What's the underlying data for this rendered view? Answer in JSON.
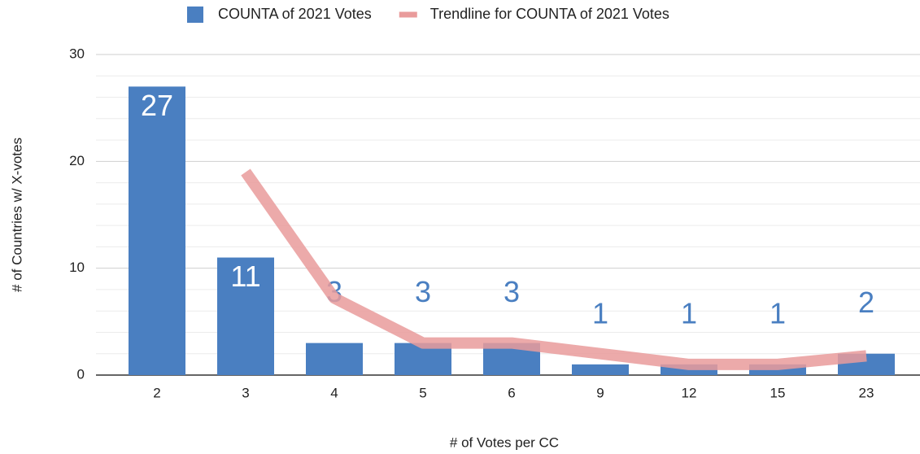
{
  "chart_data": {
    "type": "bar",
    "x_label": "# of Votes per CC",
    "y_label": "# of Countries w/ X-votes",
    "categories": [
      "2",
      "3",
      "4",
      "5",
      "6",
      "9",
      "12",
      "15",
      "23"
    ],
    "series": [
      {
        "name": "COUNTA of 2021 Votes",
        "color": "#4a7fc1",
        "values": [
          27,
          11,
          3,
          3,
          3,
          1,
          1,
          1,
          2
        ]
      },
      {
        "name": "Trendline for COUNTA of 2021 Votes",
        "type": "line",
        "color": "#e99b9b",
        "values": [
          null,
          19,
          7.2,
          3,
          3,
          2,
          1,
          1,
          1.8
        ]
      }
    ],
    "ylim": [
      0,
      30
    ],
    "yticks": [
      0,
      10,
      20,
      30
    ],
    "minor_yticks": [
      2,
      4,
      6,
      8,
      12,
      14,
      16,
      18,
      22,
      24,
      26,
      28
    ],
    "grid": true,
    "legend": "top"
  }
}
